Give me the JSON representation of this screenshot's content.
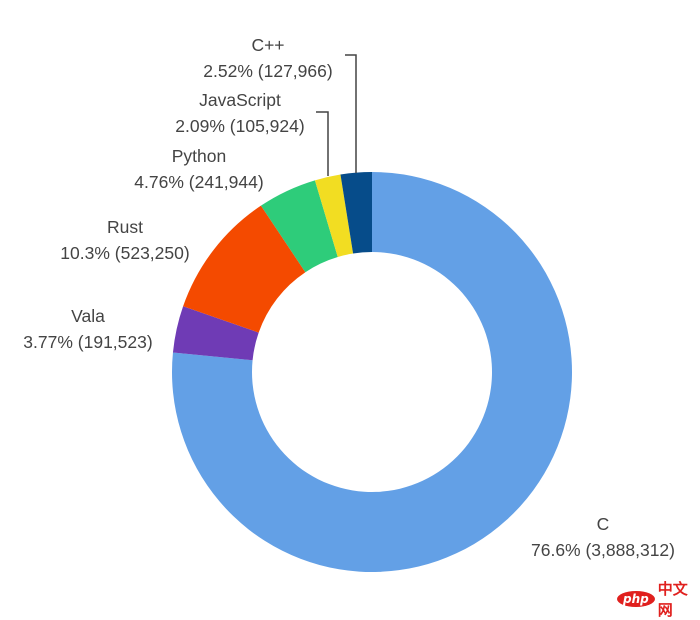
{
  "chart_data": {
    "type": "pie",
    "donut": true,
    "start_angle": "top",
    "direction": "clockwise",
    "slices": [
      {
        "name": "C",
        "percent": 76.6,
        "value": 3888312,
        "percent_label": "76.6%",
        "value_label": "3,888,312",
        "color": "#63a0e6"
      },
      {
        "name": "Vala",
        "percent": 3.77,
        "value": 191523,
        "percent_label": "3.77%",
        "value_label": "191,523",
        "color": "#6f3bb5"
      },
      {
        "name": "Rust",
        "percent": 10.3,
        "value": 523250,
        "percent_label": "10.3%",
        "value_label": "523,250",
        "color": "#f44a00"
      },
      {
        "name": "Python",
        "percent": 4.76,
        "value": 241944,
        "percent_label": "4.76%",
        "value_label": "241,944",
        "color": "#2ecc7a"
      },
      {
        "name": "JavaScript",
        "percent": 2.09,
        "value": 105924,
        "percent_label": "2.09%",
        "value_label": "105,924",
        "color": "#f2dd22"
      },
      {
        "name": "C++",
        "percent": 2.52,
        "value": 127966,
        "percent_label": "2.52%",
        "value_label": "127,966",
        "color": "#064c8a"
      }
    ]
  },
  "watermark": {
    "logo": "php",
    "text": "中文网"
  }
}
